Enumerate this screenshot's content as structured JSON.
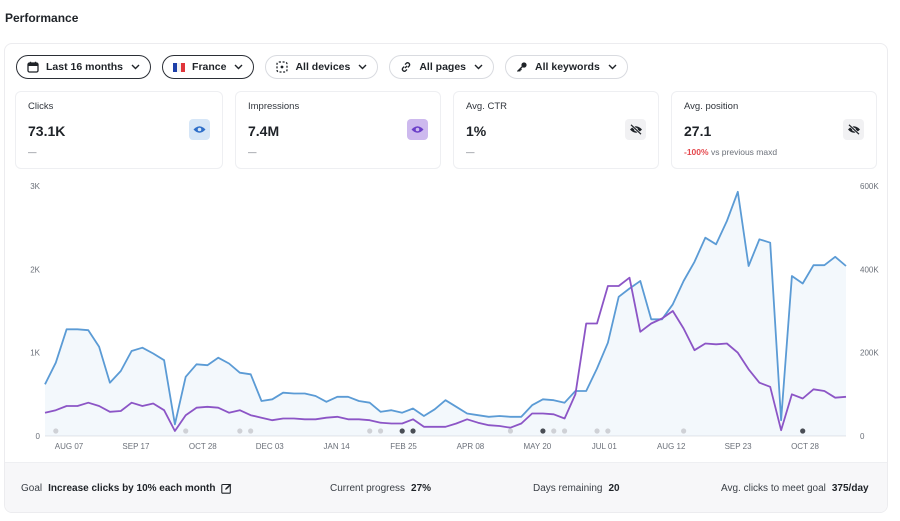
{
  "page": {
    "title": "Performance"
  },
  "filters": {
    "date_range": "Last 16 months",
    "country": "France",
    "devices": "All devices",
    "pages": "All pages",
    "keywords": "All keywords"
  },
  "metrics": [
    {
      "label": "Clicks",
      "value": "73.1K",
      "sub": "—",
      "eye_color": "#2f6fc9",
      "eye_bg": "#d6e6f7",
      "visible": true
    },
    {
      "label": "Impressions",
      "value": "7.4M",
      "sub": "—",
      "eye_color": "#6b3fc9",
      "eye_bg": "#cdb9ee",
      "visible": true
    },
    {
      "label": "Avg. CTR",
      "value": "1%",
      "sub": "—",
      "eye_color": "#1f2328",
      "eye_bg": "#f1f1f3",
      "visible": false
    },
    {
      "label": "Avg. position",
      "value": "27.1",
      "sub_neg": "-100%",
      "sub_rest": " vs previous maxd",
      "eye_color": "#1f2328",
      "eye_bg": "#f1f1f3",
      "visible": false
    }
  ],
  "chart_data": {
    "type": "line",
    "x_ticks": [
      "AUG 07",
      "SEP 17",
      "OCT 28",
      "DEC 03",
      "JAN 14",
      "FEB 25",
      "APR 08",
      "MAY 20",
      "JUL 01",
      "AUG 12",
      "SEP 23",
      "OCT 28"
    ],
    "y_left_ticks": [
      "0",
      "1K",
      "2K",
      "3K"
    ],
    "y_right_ticks": [
      "0",
      "200K",
      "400K",
      "600K"
    ],
    "ylim_left": [
      0,
      3000
    ],
    "ylim_right": [
      0,
      600000
    ],
    "grid": false,
    "series": [
      {
        "color": "#5b9bd5",
        "axis": "left",
        "values": [
          620,
          880,
          1280,
          1280,
          1270,
          1070,
          640,
          780,
          1020,
          1060,
          990,
          910,
          140,
          710,
          860,
          850,
          940,
          870,
          760,
          740,
          420,
          440,
          520,
          510,
          510,
          480,
          410,
          470,
          470,
          420,
          400,
          290,
          310,
          280,
          330,
          240,
          320,
          430,
          350,
          270,
          250,
          230,
          240,
          230,
          230,
          370,
          440,
          430,
          400,
          540,
          540,
          810,
          1120,
          1670,
          1770,
          1860,
          1400,
          1400,
          1580,
          1860,
          2090,
          2380,
          2300,
          2580,
          2930,
          2040,
          2360,
          2320,
          190,
          1920,
          1830,
          2050,
          2050,
          2150,
          2040
        ]
      },
      {
        "color": "#8c55c6",
        "axis": "right",
        "values": [
          56000,
          62000,
          72000,
          72000,
          80000,
          72000,
          58000,
          60000,
          80000,
          72000,
          78000,
          62000,
          12000,
          50000,
          68000,
          70000,
          68000,
          56000,
          62000,
          50000,
          44000,
          38000,
          42000,
          42000,
          40000,
          40000,
          44000,
          46000,
          40000,
          40000,
          38000,
          32000,
          30000,
          30000,
          40000,
          22000,
          22000,
          22000,
          30000,
          40000,
          32000,
          26000,
          24000,
          20000,
          30000,
          54000,
          54000,
          52000,
          42000,
          100000,
          270000,
          270000,
          360000,
          360000,
          380000,
          250000,
          270000,
          282000,
          300000,
          258000,
          206000,
          222000,
          220000,
          222000,
          200000,
          160000,
          128000,
          118000,
          14000,
          100000,
          90000,
          112000,
          108000,
          92000,
          94000
        ]
      }
    ],
    "markers": [
      {
        "i": 1,
        "dark": false
      },
      {
        "i": 13,
        "dark": false
      },
      {
        "i": 18,
        "dark": false
      },
      {
        "i": 19,
        "dark": false
      },
      {
        "i": 30,
        "dark": false
      },
      {
        "i": 31,
        "dark": false
      },
      {
        "i": 33,
        "dark": true
      },
      {
        "i": 34,
        "dark": true
      },
      {
        "i": 43,
        "dark": false
      },
      {
        "i": 46,
        "dark": true
      },
      {
        "i": 47,
        "dark": false
      },
      {
        "i": 48,
        "dark": false
      },
      {
        "i": 51,
        "dark": false
      },
      {
        "i": 52,
        "dark": false
      },
      {
        "i": 59,
        "dark": false
      },
      {
        "i": 70,
        "dark": true
      }
    ]
  },
  "footer": {
    "goal_label": "Goal",
    "goal_value": "Increase clicks by 10% each month",
    "progress_label": "Current progress",
    "progress_value": "27%",
    "remaining_label": "Days remaining",
    "remaining_value": "20",
    "avg_label": "Avg. clicks to meet goal",
    "avg_value": "375/day"
  }
}
